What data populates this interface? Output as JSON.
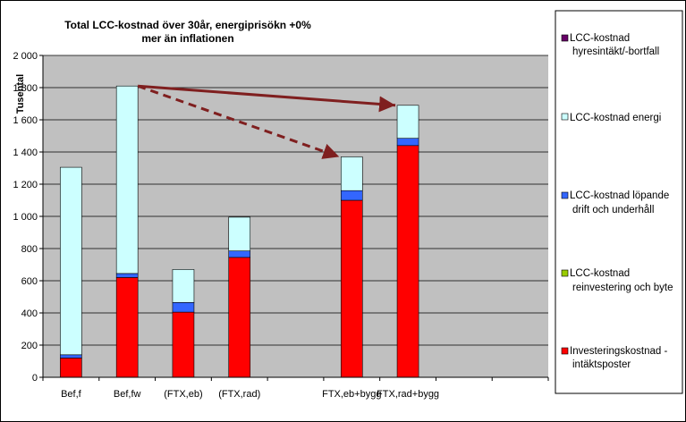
{
  "chart_data": {
    "type": "bar",
    "stacked": true,
    "title_lines": [
      "Total LCC-kostnad  över 30år, energiprisökn  +0%",
      "mer än inflationen"
    ],
    "ylabel": "Tusental",
    "xlabel": "",
    "ylim": [
      0,
      2000
    ],
    "yticks": [
      0,
      200,
      400,
      600,
      800,
      1000,
      1200,
      1400,
      1600,
      1800,
      2000
    ],
    "ytick_labels": [
      "0",
      "200",
      "400",
      "600",
      "800",
      "1 000",
      "1 200",
      "1 400",
      "1 600",
      "1 800",
      "2 000"
    ],
    "grid": true,
    "legend_position": "right",
    "slots": 9,
    "categories": [
      "Bef,f",
      "Bef,fw",
      "(FTX,eb)",
      "(FTX,rad)",
      "",
      "FTX,eb+bygg",
      "FTX,rad+bygg",
      "",
      ""
    ],
    "series": [
      {
        "name": "Investeringskostnad - intäktsposter",
        "color": "#ff0000",
        "values": [
          120,
          620,
          405,
          745,
          0,
          1100,
          1440,
          0,
          0
        ]
      },
      {
        "name": "LCC-kostnad reinvestering och byte",
        "color": "#99cc00",
        "values": [
          0,
          0,
          0,
          0,
          0,
          0,
          0,
          0,
          0
        ]
      },
      {
        "name": "LCC-kostnad löpande drift och underhåll",
        "color": "#3366ff",
        "values": [
          20,
          25,
          60,
          40,
          0,
          60,
          45,
          0,
          0
        ]
      },
      {
        "name": "LCC-kostnad energi",
        "color": "#ccffff",
        "values": [
          1165,
          1165,
          205,
          210,
          0,
          210,
          205,
          0,
          0
        ]
      },
      {
        "name": "LCC-kostnad hyresintäkt/-bortfall",
        "color": "#660066",
        "values": [
          0,
          0,
          0,
          0,
          0,
          0,
          0,
          0,
          0
        ]
      }
    ],
    "legend_order": [
      4,
      3,
      2,
      1,
      0
    ],
    "arrows": [
      {
        "from_category": 1,
        "from_value": 1810,
        "to_category": 6,
        "to_value": 1690,
        "style": "solid",
        "color": "#7f1f1f"
      },
      {
        "from_category": 1,
        "from_value": 1810,
        "to_category": 5,
        "to_value": 1370,
        "style": "dashed",
        "color": "#7f1f1f"
      }
    ]
  }
}
